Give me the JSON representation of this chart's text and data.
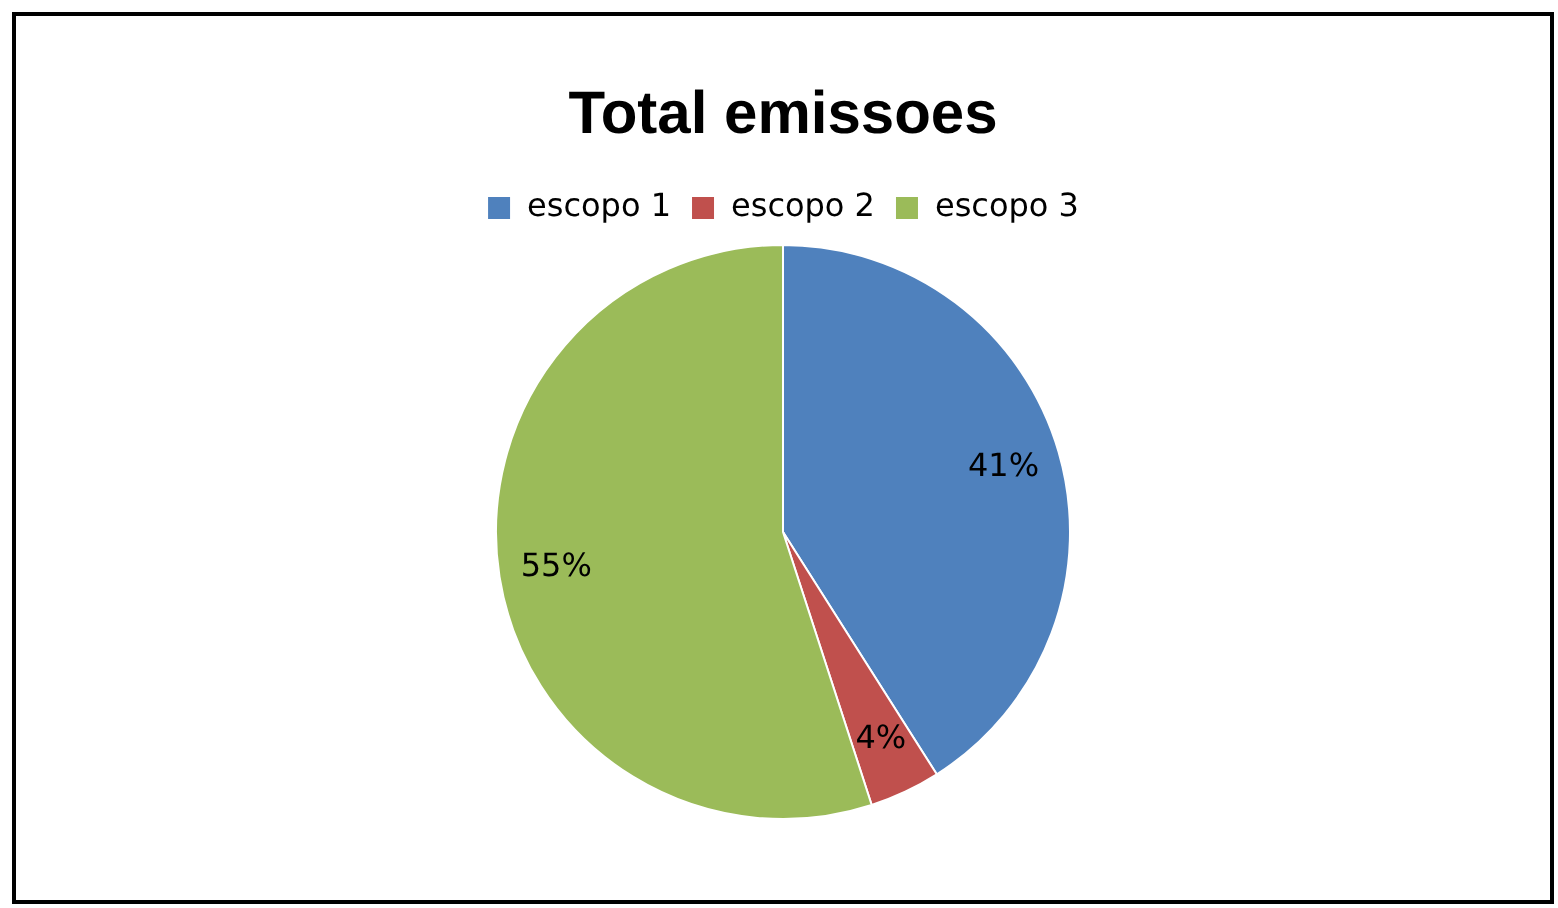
{
  "chart_data": {
    "type": "pie",
    "title": "Total emissoes",
    "categories": [
      "escopo 1",
      "escopo 2",
      "escopo 3"
    ],
    "values": [
      41,
      4,
      55
    ],
    "colors": [
      "#4f81bd",
      "#c0504d",
      "#9bbb59"
    ],
    "value_labels": [
      "41%",
      "4%",
      "55%"
    ],
    "legend": "top"
  }
}
